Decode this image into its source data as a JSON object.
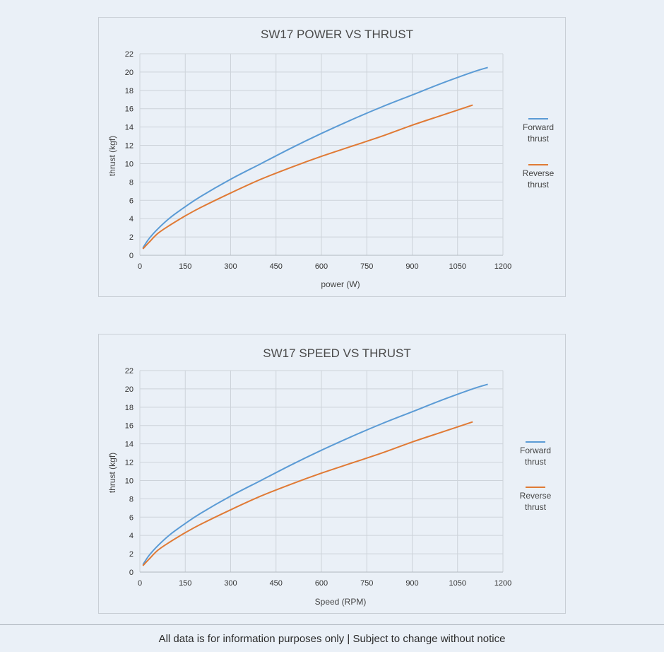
{
  "footer": {
    "text": "All data is for information purposes only | Subject to change without notice"
  },
  "chart_data": [
    {
      "type": "line",
      "title": "SW17 POWER VS THRUST",
      "xlabel": "power (W)",
      "ylabel": "thrust (kgf)",
      "xlim": [
        0,
        1200
      ],
      "ylim": [
        0,
        22
      ],
      "xticks": [
        0,
        150,
        300,
        450,
        600,
        750,
        900,
        1050,
        1200
      ],
      "yticks": [
        0,
        2,
        4,
        6,
        8,
        10,
        12,
        14,
        16,
        18,
        20,
        22
      ],
      "grid": true,
      "legend_position": "right",
      "series": [
        {
          "name": "Forward thrust",
          "color": "#5b9bd5",
          "x": [
            10,
            30,
            60,
            100,
            150,
            200,
            300,
            400,
            500,
            600,
            700,
            800,
            900,
            1000,
            1100,
            1150
          ],
          "y": [
            0.8,
            1.8,
            2.9,
            4.1,
            5.3,
            6.4,
            8.3,
            10.0,
            11.7,
            13.3,
            14.8,
            16.2,
            17.5,
            18.8,
            20.0,
            20.5
          ]
        },
        {
          "name": "Reverse thrust",
          "color": "#e07a35",
          "x": [
            10,
            30,
            60,
            100,
            150,
            200,
            300,
            400,
            500,
            600,
            700,
            800,
            900,
            1000,
            1100
          ],
          "y": [
            0.7,
            1.4,
            2.4,
            3.3,
            4.3,
            5.2,
            6.8,
            8.3,
            9.6,
            10.8,
            11.9,
            13.0,
            14.2,
            15.3,
            16.4
          ]
        }
      ]
    },
    {
      "type": "line",
      "title": "SW17 SPEED VS THRUST",
      "xlabel": "Speed (RPM)",
      "ylabel": "thrust (kgf)",
      "xlim": [
        0,
        1200
      ],
      "ylim": [
        0,
        22
      ],
      "xticks": [
        0,
        150,
        300,
        450,
        600,
        750,
        900,
        1050,
        1200
      ],
      "yticks": [
        0,
        2,
        4,
        6,
        8,
        10,
        12,
        14,
        16,
        18,
        20,
        22
      ],
      "grid": true,
      "legend_position": "right",
      "series": [
        {
          "name": "Forward thrust",
          "color": "#5b9bd5",
          "x": [
            10,
            30,
            60,
            100,
            150,
            200,
            300,
            400,
            500,
            600,
            700,
            800,
            900,
            1000,
            1100,
            1150
          ],
          "y": [
            0.8,
            1.8,
            2.9,
            4.1,
            5.3,
            6.4,
            8.3,
            10.0,
            11.7,
            13.3,
            14.8,
            16.2,
            17.5,
            18.8,
            20.0,
            20.5
          ]
        },
        {
          "name": "Reverse thrust",
          "color": "#e07a35",
          "x": [
            10,
            30,
            60,
            100,
            150,
            200,
            300,
            400,
            500,
            600,
            700,
            800,
            900,
            1000,
            1100
          ],
          "y": [
            0.7,
            1.4,
            2.4,
            3.3,
            4.3,
            5.2,
            6.8,
            8.3,
            9.6,
            10.8,
            11.9,
            13.0,
            14.2,
            15.3,
            16.4
          ]
        }
      ]
    }
  ]
}
